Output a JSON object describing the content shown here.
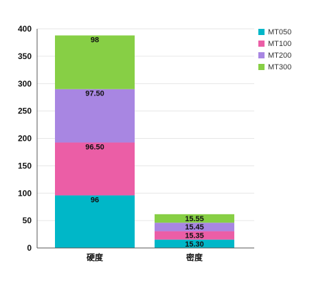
{
  "chart_data": {
    "type": "bar",
    "stacked": true,
    "categories": [
      "硬度",
      "密度"
    ],
    "series": [
      {
        "name": "MT050",
        "color": "#00b7c8",
        "values": [
          96,
          15.3
        ],
        "labels": [
          "96",
          "15.30"
        ]
      },
      {
        "name": "MT100",
        "color": "#eb5ea6",
        "values": [
          96.5,
          15.35
        ],
        "labels": [
          "96.50",
          "15.35"
        ]
      },
      {
        "name": "MT200",
        "color": "#a886e2",
        "values": [
          97.5,
          15.45
        ],
        "labels": [
          "97.50",
          "15.45"
        ]
      },
      {
        "name": "MT300",
        "color": "#87cf45",
        "values": [
          98,
          15.55
        ],
        "labels": [
          "98",
          "15.55"
        ]
      }
    ],
    "ylim": [
      0,
      400
    ],
    "yticks": [
      "0",
      "50",
      "100",
      "150",
      "200",
      "250",
      "300",
      "350",
      "400"
    ],
    "grid": true,
    "legend_position": "top-right"
  }
}
